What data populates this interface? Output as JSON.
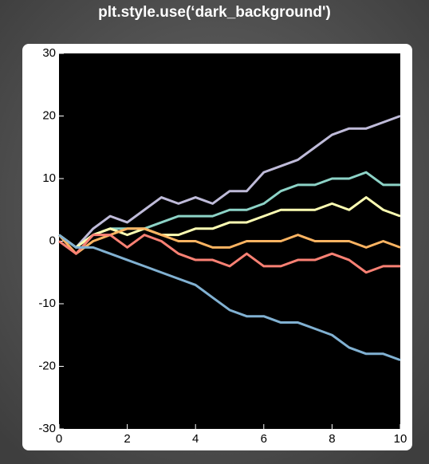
{
  "chart_data": {
    "type": "line",
    "title": "plt.style.use(‘dark_background')",
    "x": [
      0,
      0.5,
      1,
      1.5,
      2,
      2.5,
      3,
      3.5,
      4,
      4.5,
      5,
      5.5,
      6,
      6.5,
      7,
      7.5,
      8,
      8.5,
      9,
      9.5,
      10
    ],
    "series": [
      {
        "color": "#bfbbd9",
        "values": [
          1,
          -1,
          2,
          4,
          3,
          5,
          7,
          6,
          7,
          6,
          8,
          8,
          11,
          12,
          13,
          15,
          17,
          18,
          18,
          19,
          20
        ]
      },
      {
        "color": "#8dd3c7",
        "values": [
          1,
          -1,
          1,
          2,
          2,
          2,
          3,
          4,
          4,
          4,
          5,
          5,
          6,
          8,
          9,
          9,
          10,
          10,
          11,
          9,
          9
        ]
      },
      {
        "color": "#feffb3",
        "values": [
          1,
          -1,
          1,
          2,
          1,
          2,
          1,
          1,
          2,
          2,
          3,
          3,
          4,
          5,
          5,
          5,
          6,
          5,
          7,
          5,
          4
        ]
      },
      {
        "color": "#fdb462",
        "values": [
          1,
          -2,
          0,
          1,
          2,
          2,
          1,
          0,
          0,
          -1,
          -1,
          0,
          0,
          0,
          1,
          0,
          0,
          0,
          -1,
          0,
          -1
        ]
      },
      {
        "color": "#fa8174",
        "values": [
          0,
          -2,
          1,
          1,
          -1,
          1,
          0,
          -2,
          -3,
          -3,
          -4,
          -2,
          -4,
          -4,
          -3,
          -3,
          -2,
          -3,
          -5,
          -4,
          -4
        ]
      },
      {
        "color": "#81b1d2",
        "values": [
          1,
          -1,
          -1,
          -2,
          -3,
          -4,
          -5,
          -6,
          -7,
          -9,
          -11,
          -12,
          -12,
          -13,
          -13,
          -14,
          -15,
          -17,
          -18,
          -18,
          -19
        ]
      }
    ],
    "xlim": [
      0,
      10
    ],
    "xticks": [
      0,
      2,
      4,
      6,
      8,
      10
    ],
    "ylim": [
      -30,
      30
    ],
    "yticks": [
      -30,
      -20,
      -10,
      0,
      10,
      20,
      30
    ]
  }
}
